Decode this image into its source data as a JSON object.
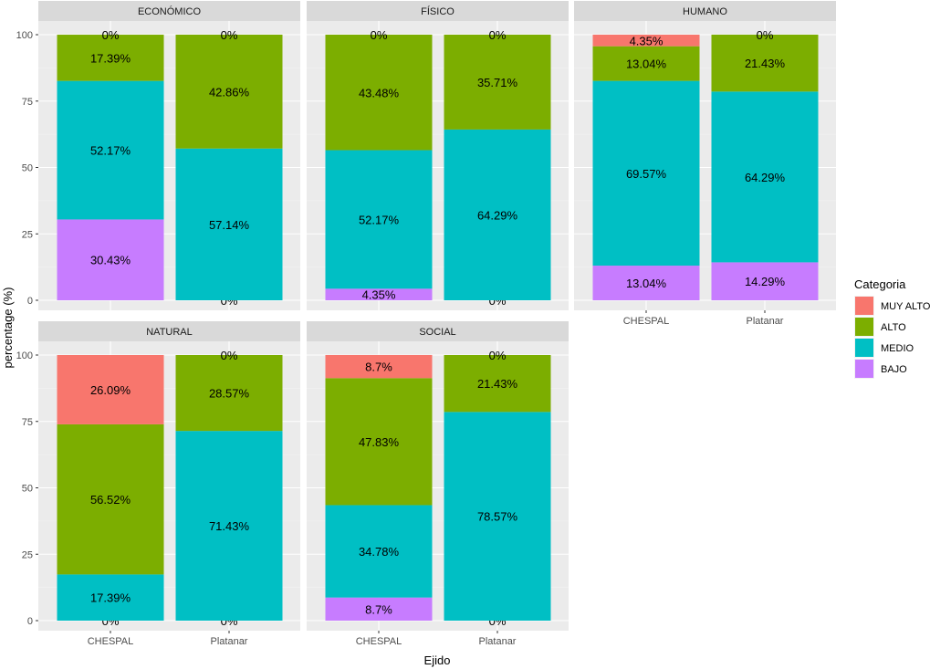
{
  "chart_data": {
    "type": "bar",
    "stacked": true,
    "xlabel": "Ejido",
    "ylabel": "percentage (%)",
    "ylim": [
      0,
      100
    ],
    "yticks": [
      0,
      25,
      50,
      75,
      100
    ],
    "categories": [
      "CHESPAL",
      "Platanar"
    ],
    "legend": {
      "title": "Categoria",
      "position": "right",
      "items": [
        {
          "name": "MUY ALTO",
          "color": "#F8766D"
        },
        {
          "name": "ALTO",
          "color": "#7CAE00"
        },
        {
          "name": "MEDIO",
          "color": "#00BFC4"
        },
        {
          "name": "BAJO",
          "color": "#C77CFF"
        }
      ]
    },
    "panels": [
      {
        "title": "ECONÓMICO",
        "bars": [
          {
            "category": "CHESPAL",
            "segments": [
              {
                "name": "BAJO",
                "value": 30.43,
                "label": "30.43%"
              },
              {
                "name": "MEDIO",
                "value": 52.17,
                "label": "52.17%"
              },
              {
                "name": "ALTO",
                "value": 17.39,
                "label": "17.39%"
              },
              {
                "name": "MUY ALTO",
                "value": 0,
                "label": "0%"
              }
            ]
          },
          {
            "category": "Platanar",
            "segments": [
              {
                "name": "BAJO",
                "value": 0,
                "label": "0%"
              },
              {
                "name": "MEDIO",
                "value": 57.14,
                "label": "57.14%"
              },
              {
                "name": "ALTO",
                "value": 42.86,
                "label": "42.86%"
              },
              {
                "name": "MUY ALTO",
                "value": 0,
                "label": "0%"
              }
            ]
          }
        ]
      },
      {
        "title": "FÍSICO",
        "bars": [
          {
            "category": "CHESPAL",
            "segments": [
              {
                "name": "BAJO",
                "value": 4.35,
                "label": "4.35%"
              },
              {
                "name": "MEDIO",
                "value": 52.17,
                "label": "52.17%"
              },
              {
                "name": "ALTO",
                "value": 43.48,
                "label": "43.48%"
              },
              {
                "name": "MUY ALTO",
                "value": 0,
                "label": "0%"
              }
            ]
          },
          {
            "category": "Platanar",
            "segments": [
              {
                "name": "BAJO",
                "value": 0,
                "label": "0%"
              },
              {
                "name": "MEDIO",
                "value": 64.29,
                "label": "64.29%"
              },
              {
                "name": "ALTO",
                "value": 35.71,
                "label": "35.71%"
              },
              {
                "name": "MUY ALTO",
                "value": 0,
                "label": "0%"
              }
            ]
          }
        ]
      },
      {
        "title": "HUMANO",
        "bars": [
          {
            "category": "CHESPAL",
            "segments": [
              {
                "name": "BAJO",
                "value": 13.04,
                "label": "13.04%"
              },
              {
                "name": "MEDIO",
                "value": 69.57,
                "label": "69.57%"
              },
              {
                "name": "ALTO",
                "value": 13.04,
                "label": "13.04%"
              },
              {
                "name": "MUY ALTO",
                "value": 4.35,
                "label": "4.35%"
              }
            ]
          },
          {
            "category": "Platanar",
            "segments": [
              {
                "name": "BAJO",
                "value": 14.29,
                "label": "14.29%"
              },
              {
                "name": "MEDIO",
                "value": 64.29,
                "label": "64.29%"
              },
              {
                "name": "ALTO",
                "value": 21.43,
                "label": "21.43%"
              },
              {
                "name": "MUY ALTO",
                "value": 0,
                "label": "0%"
              }
            ]
          }
        ]
      },
      {
        "title": "NATURAL",
        "bars": [
          {
            "category": "CHESPAL",
            "segments": [
              {
                "name": "BAJO",
                "value": 0,
                "label": "0%"
              },
              {
                "name": "MEDIO",
                "value": 17.39,
                "label": "17.39%"
              },
              {
                "name": "ALTO",
                "value": 56.52,
                "label": "56.52%"
              },
              {
                "name": "MUY ALTO",
                "value": 26.09,
                "label": "26.09%"
              }
            ]
          },
          {
            "category": "Platanar",
            "segments": [
              {
                "name": "BAJO",
                "value": 0,
                "label": "0%"
              },
              {
                "name": "MEDIO",
                "value": 71.43,
                "label": "71.43%"
              },
              {
                "name": "ALTO",
                "value": 28.57,
                "label": "28.57%"
              },
              {
                "name": "MUY ALTO",
                "value": 0,
                "label": "0%"
              }
            ]
          }
        ]
      },
      {
        "title": "SOCIAL",
        "bars": [
          {
            "category": "CHESPAL",
            "segments": [
              {
                "name": "BAJO",
                "value": 8.7,
                "label": "8.7%"
              },
              {
                "name": "MEDIO",
                "value": 34.78,
                "label": "34.78%"
              },
              {
                "name": "ALTO",
                "value": 47.83,
                "label": "47.83%"
              },
              {
                "name": "MUY ALTO",
                "value": 8.7,
                "label": "8.7%"
              }
            ]
          },
          {
            "category": "Platanar",
            "segments": [
              {
                "name": "BAJO",
                "value": 0,
                "label": "0%"
              },
              {
                "name": "MEDIO",
                "value": 78.57,
                "label": "78.57%"
              },
              {
                "name": "ALTO",
                "value": 21.43,
                "label": "21.43%"
              },
              {
                "name": "MUY ALTO",
                "value": 0,
                "label": "0%"
              }
            ]
          }
        ]
      }
    ]
  }
}
